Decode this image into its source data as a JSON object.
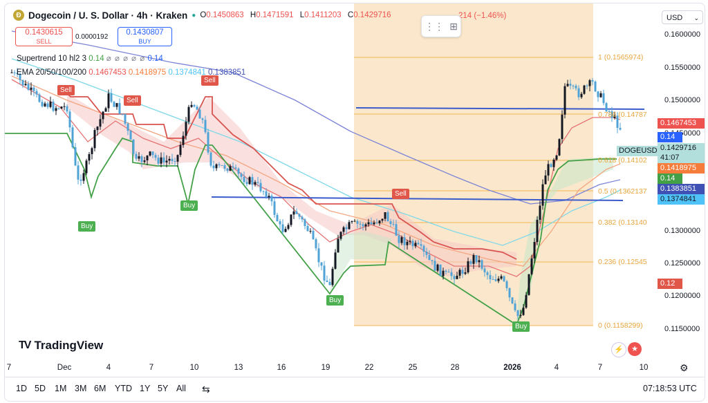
{
  "header": {
    "logo_letter": "Ð",
    "title": "Dogecoin / U. S. Dollar · 4h · Kraken",
    "status_dot": "●",
    "ohlc": [
      {
        "k": "O",
        "v": "0.1450863"
      },
      {
        "k": "H",
        "v": "0.1471591"
      },
      {
        "k": "L",
        "v": "0.1411203"
      },
      {
        "k": "C",
        "v": "0.1429716"
      }
    ],
    "change": "214 (−1.46%)"
  },
  "trade": {
    "sell_price": "0.1430615",
    "sell_label": "SELL",
    "spread": "0.0000192",
    "buy_price": "0.1430807",
    "buy_label": "BUY"
  },
  "indicators": {
    "supertrend_name": "Supertrend 10 hl2 3",
    "supertrend_value": "0.14",
    "supertrend_symbols": "⌀ ⌀ ⌀ ⌀ ⌀",
    "supertrend_value2": "0.14",
    "ema_name": "EMA 20/50/100/200",
    "ema_values": [
      "0.1467453",
      "0.1418975",
      "0.1374841",
      "0.1383851"
    ]
  },
  "currency": {
    "label": "USD"
  },
  "price_axis": [
    "0.1600000",
    "0.1550000",
    "0.1500000",
    "0.1450000",
    "0.1300000",
    "0.1250000",
    "0.1200000",
    "0.1150000"
  ],
  "price_tags": [
    {
      "text": "0.1467453",
      "color": "#ef5350"
    },
    {
      "text": "0.14",
      "color": "#2962ff"
    },
    {
      "text": "0.1429716",
      "color": "#b2dfdb"
    },
    {
      "text": "41:07",
      "color": "#b2dfdb"
    },
    {
      "text": "0.1418975",
      "color": "#f57c3a"
    },
    {
      "text": "0.14",
      "color": "#43a047"
    },
    {
      "text": "0.1383851",
      "color": "#3f51b5"
    },
    {
      "text": "0.1374841",
      "color": "#4fc3f7"
    },
    {
      "text": "0.12",
      "color": "#e0574a"
    }
  ],
  "symbol_tag": "DOGEUSD",
  "fib_levels": [
    {
      "text": "1 (0.1565974)"
    },
    {
      "text": "0.786 (0.14787"
    },
    {
      "text": "0.618 (0.14102"
    },
    {
      "text": "0.5 (0.1362137"
    },
    {
      "text": "0.382 (0.13140"
    },
    {
      "text": "0.236 (0.12545"
    },
    {
      "text": "0 (0.1158299)"
    }
  ],
  "signals": [
    {
      "text": "Sell",
      "type": "sell"
    },
    {
      "text": "Sell",
      "type": "sell"
    },
    {
      "text": "Sell",
      "type": "sell"
    },
    {
      "text": "Sell",
      "type": "sell"
    },
    {
      "text": "Buy",
      "type": "buy"
    },
    {
      "text": "Buy",
      "type": "buy"
    },
    {
      "text": "Buy",
      "type": "buy"
    },
    {
      "text": "Buy",
      "type": "buy"
    }
  ],
  "time_axis": [
    "7",
    "Dec",
    "4",
    "7",
    "10",
    "13",
    "16",
    "19",
    "22",
    "25",
    "28",
    "2026",
    "4",
    "7",
    "10"
  ],
  "timeframes": [
    "1D",
    "5D",
    "1M",
    "3M",
    "6M",
    "YTD",
    "1Y",
    "5Y",
    "All"
  ],
  "clock": "07:18:53 UTC",
  "brand": {
    "mark": "TV",
    "name": "TradingView"
  },
  "colors": {
    "up": "#26a69a",
    "down": "#ef5350",
    "fib": "#f0b351",
    "fib_zone": "#fbe6c6",
    "trend_line": "#3b5bcc"
  }
}
